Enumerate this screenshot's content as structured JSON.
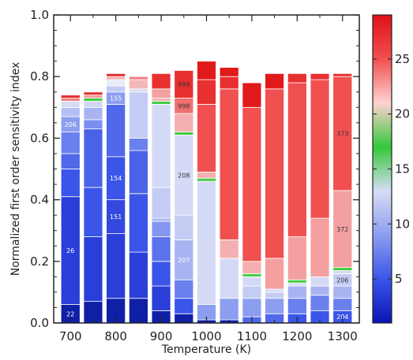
{
  "chart_data": {
    "type": "bar",
    "stacked": true,
    "xlabel": "Temperature (K)",
    "ylabel": "Normalized first order sensitivity index",
    "ylim": [
      0,
      1.0
    ],
    "yticks": [
      "0.0",
      "0.2",
      "0.4",
      "0.6",
      "0.8",
      "1.0"
    ],
    "xticks": [
      "700",
      "800",
      "900",
      "1000",
      "1100",
      "1200",
      "1300"
    ],
    "xticks_values": [
      700,
      800,
      900,
      1000,
      1100,
      1200,
      1300
    ],
    "xlim": [
      663,
      1337
    ],
    "bar_width": 42,
    "colorbar": {
      "ticks": [
        "5",
        "10",
        "15",
        "20",
        "25"
      ],
      "tick_values": [
        5,
        10,
        15,
        20,
        25
      ],
      "range": [
        1,
        29
      ],
      "colors": [
        "#0a14b4",
        "#3a55e8",
        "#8c9ef0",
        "#d7dcf4",
        "#34c83a",
        "#ffd2d2",
        "#f05050",
        "#e0101a"
      ]
    },
    "bars": [
      {
        "x": 700,
        "total": 0.74,
        "segments": [
          {
            "value": 0.06,
            "color": "#0f1fa6",
            "label": "22"
          },
          {
            "value": 0.35,
            "color": "#2a3fd8",
            "label": "26"
          },
          {
            "value": 0.09,
            "color": "#3a55e8"
          },
          {
            "value": 0.05,
            "color": "#5068ea"
          },
          {
            "value": 0.07,
            "color": "#6a80ee"
          },
          {
            "value": 0.05,
            "color": "#8c9ef0",
            "label": "206"
          },
          {
            "value": 0.03,
            "color": "#b4c0f4"
          },
          {
            "value": 0.02,
            "color": "#d7dcf4"
          },
          {
            "value": 0.01,
            "color": "#f08080"
          },
          {
            "value": 0.01,
            "color": "#e03030"
          }
        ]
      },
      {
        "x": 750,
        "total": 0.75,
        "segments": [
          {
            "value": 0.07,
            "color": "#0f1fa6"
          },
          {
            "value": 0.21,
            "color": "#2a3fd8"
          },
          {
            "value": 0.16,
            "color": "#3a55e8"
          },
          {
            "value": 0.19,
            "color": "#4a62e8"
          },
          {
            "value": 0.03,
            "color": "#7a8ff0"
          },
          {
            "value": 0.04,
            "color": "#a8b4f2"
          },
          {
            "value": 0.02,
            "color": "#d0d6f4"
          },
          {
            "value": 0.01,
            "color": "#44cc44"
          },
          {
            "value": 0.01,
            "color": "#f0a0a0"
          },
          {
            "value": 0.01,
            "color": "#e03030"
          }
        ]
      },
      {
        "x": 800,
        "total": 0.81,
        "segments": [
          {
            "value": 0.08,
            "color": "#0f1fa6"
          },
          {
            "value": 0.21,
            "color": "#2a3fd8"
          },
          {
            "value": 0.11,
            "color": "#3348de",
            "label": "151"
          },
          {
            "value": 0.14,
            "color": "#3a55e8",
            "label": "154"
          },
          {
            "value": 0.17,
            "color": "#5068ea"
          },
          {
            "value": 0.04,
            "color": "#8c9ef0",
            "label": "155"
          },
          {
            "value": 0.02,
            "color": "#c4ccf4"
          },
          {
            "value": 0.02,
            "color": "#e8ecf8"
          },
          {
            "value": 0.01,
            "color": "#f4b0b0"
          },
          {
            "value": 0.01,
            "color": "#e03030"
          }
        ]
      },
      {
        "x": 850,
        "total": 0.79,
        "segments": [
          {
            "value": 0.08,
            "color": "#0f1fa6"
          },
          {
            "value": 0.15,
            "color": "#2a3fd8"
          },
          {
            "value": 0.19,
            "color": "#3a55e8"
          },
          {
            "value": 0.14,
            "color": "#4a62e8"
          },
          {
            "value": 0.04,
            "color": "#6a80ee"
          },
          {
            "value": 0.15,
            "color": "#c4ccf4"
          },
          {
            "value": 0.01,
            "color": "#d7dcf4"
          },
          {
            "value": 0.03,
            "color": "#f4b8b8"
          },
          {
            "value": 0.01,
            "color": "#f08080"
          }
        ]
      },
      {
        "x": 900,
        "total": 0.81,
        "segments": [
          {
            "value": 0.04,
            "color": "#0f1fa6"
          },
          {
            "value": 0.08,
            "color": "#2a3fd8"
          },
          {
            "value": 0.08,
            "color": "#3a55e8"
          },
          {
            "value": 0.08,
            "color": "#5a72ec"
          },
          {
            "value": 0.05,
            "color": "#8496f0"
          },
          {
            "value": 0.01,
            "color": "#a8b4f2"
          },
          {
            "value": 0.1,
            "color": "#c4ccf4"
          },
          {
            "value": 0.27,
            "color": "#d4daf6"
          },
          {
            "value": 0.01,
            "color": "#44cc44"
          },
          {
            "value": 0.01,
            "color": "#f4b0b0"
          },
          {
            "value": 0.03,
            "color": "#f4a0a0"
          },
          {
            "value": 0.05,
            "color": "#e83030"
          }
        ]
      },
      {
        "x": 950,
        "total": 0.82,
        "segments": [
          {
            "value": 0.03,
            "color": "#0f1fa6"
          },
          {
            "value": 0.05,
            "color": "#3a55e8"
          },
          {
            "value": 0.06,
            "color": "#6a80ee"
          },
          {
            "value": 0.13,
            "color": "#a8b4f2",
            "label": "207"
          },
          {
            "value": 0.08,
            "color": "#c4ccf4"
          },
          {
            "value": 0.26,
            "color": "#d4daf6",
            "label": "208"
          },
          {
            "value": 0.01,
            "color": "#44cc44"
          },
          {
            "value": 0.06,
            "color": "#f4b0b0"
          },
          {
            "value": 0.05,
            "color": "#f07070",
            "label": "998"
          },
          {
            "value": 0.09,
            "color": "#e83030",
            "label": "999"
          }
        ]
      },
      {
        "x": 1000,
        "total": 0.85,
        "segments": [
          {
            "value": 0.01,
            "color": "#0f1fa6"
          },
          {
            "value": 0.05,
            "color": "#8c9ef0"
          },
          {
            "value": 0.4,
            "color": "#d4daf6"
          },
          {
            "value": 0.01,
            "color": "#44cc44"
          },
          {
            "value": 0.02,
            "color": "#f4b0b0"
          },
          {
            "value": 0.22,
            "color": "#f05050"
          },
          {
            "value": 0.08,
            "color": "#e83030"
          },
          {
            "value": 0.06,
            "color": "#e01a1a"
          }
        ]
      },
      {
        "x": 1050,
        "total": 0.83,
        "segments": [
          {
            "value": 0.01,
            "color": "#0f1fa6"
          },
          {
            "value": 0.07,
            "color": "#8c9ef0"
          },
          {
            "value": 0.13,
            "color": "#d4daf6"
          },
          {
            "value": 0.06,
            "color": "#f4b0b0"
          },
          {
            "value": 0.49,
            "color": "#f05050"
          },
          {
            "value": 0.04,
            "color": "#e83030"
          },
          {
            "value": 0.03,
            "color": "#e01a1a"
          }
        ]
      },
      {
        "x": 1100,
        "total": 0.78,
        "segments": [
          {
            "value": 0.02,
            "color": "#5068ea"
          },
          {
            "value": 0.06,
            "color": "#8c9ef0"
          },
          {
            "value": 0.04,
            "color": "#c4ccf4"
          },
          {
            "value": 0.03,
            "color": "#d4daf6"
          },
          {
            "value": 0.01,
            "color": "#44cc44"
          },
          {
            "value": 0.04,
            "color": "#f4b0b0"
          },
          {
            "value": 0.5,
            "color": "#f05050"
          },
          {
            "value": 0.08,
            "color": "#e01a1a"
          }
        ]
      },
      {
        "x": 1150,
        "total": 0.81,
        "segments": [
          {
            "value": 0.03,
            "color": "#5068ea"
          },
          {
            "value": 0.05,
            "color": "#8c9ef0"
          },
          {
            "value": 0.02,
            "color": "#c4ccf4"
          },
          {
            "value": 0.01,
            "color": "#d4daf6"
          },
          {
            "value": 0.1,
            "color": "#f4a0a0"
          },
          {
            "value": 0.55,
            "color": "#f05050"
          },
          {
            "value": 0.05,
            "color": "#e01a1a"
          }
        ]
      },
      {
        "x": 1200,
        "total": 0.81,
        "segments": [
          {
            "value": 0.03,
            "color": "#3a55e8"
          },
          {
            "value": 0.05,
            "color": "#6a80ee"
          },
          {
            "value": 0.04,
            "color": "#a8b4f2"
          },
          {
            "value": 0.01,
            "color": "#d4daf6"
          },
          {
            "value": 0.01,
            "color": "#44cc44"
          },
          {
            "value": 0.14,
            "color": "#f4a0a0"
          },
          {
            "value": 0.5,
            "color": "#f05050"
          },
          {
            "value": 0.03,
            "color": "#e83030"
          }
        ]
      },
      {
        "x": 1250,
        "total": 0.81,
        "segments": [
          {
            "value": 0.04,
            "color": "#3a55e8"
          },
          {
            "value": 0.05,
            "color": "#6a80ee"
          },
          {
            "value": 0.03,
            "color": "#a8b4f2"
          },
          {
            "value": 0.03,
            "color": "#d4daf6"
          },
          {
            "value": 0.19,
            "color": "#f4a0a0"
          },
          {
            "value": 0.45,
            "color": "#f05050"
          },
          {
            "value": 0.02,
            "color": "#e83030"
          }
        ]
      },
      {
        "x": 1300,
        "total": 0.81,
        "segments": [
          {
            "value": 0.04,
            "color": "#3a55e8",
            "label": "204"
          },
          {
            "value": 0.04,
            "color": "#6a80ee"
          },
          {
            "value": 0.04,
            "color": "#a8b4f2"
          },
          {
            "value": 0.04,
            "color": "#c4ccf4",
            "label": "206"
          },
          {
            "value": 0.01,
            "color": "#d4daf6"
          },
          {
            "value": 0.01,
            "color": "#44cc44"
          },
          {
            "value": 0.25,
            "color": "#f4a0a0",
            "label": "372"
          },
          {
            "value": 0.37,
            "color": "#f05050",
            "label": "373"
          },
          {
            "value": 0.01,
            "color": "#e83030"
          }
        ]
      }
    ]
  }
}
